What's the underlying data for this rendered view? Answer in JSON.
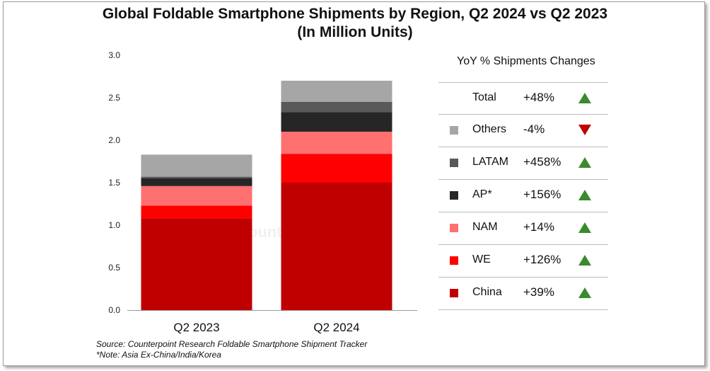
{
  "title_line1": "Global Foldable Smartphone Shipments by Region, Q2 2024 vs Q2 2023",
  "title_line2": "(In Million Units)",
  "source_line1": "Source: Counterpoint Research Foldable Smartphone Shipment Tracker",
  "source_line2": "*Note: Asia Ex-China/India/Korea",
  "watermark": "Counterpoint",
  "legend": {
    "title": "YoY % Shipments Changes",
    "rows": [
      {
        "label": "Total",
        "change": "+48%",
        "direction": "up",
        "color": null
      },
      {
        "label": "Others",
        "change": "-4%",
        "direction": "down",
        "color": "#a6a6a6"
      },
      {
        "label": "LATAM",
        "change": "+458%",
        "direction": "up",
        "color": "#595959"
      },
      {
        "label": "AP*",
        "change": "+156%",
        "direction": "up",
        "color": "#262626"
      },
      {
        "label": "NAM",
        "change": "+14%",
        "direction": "up",
        "color": "#ff7070"
      },
      {
        "label": "WE",
        "change": "+126%",
        "direction": "up",
        "color": "#ff0000"
      },
      {
        "label": "China",
        "change": "+39%",
        "direction": "up",
        "color": "#c00000"
      }
    ],
    "up_color": "#3a8a2e",
    "down_color": "#c00000"
  },
  "chart_data": {
    "type": "bar",
    "stacked": true,
    "title": "Global Foldable Smartphone Shipments by Region, Q2 2024 vs Q2 2023 (In Million Units)",
    "categories": [
      "Q2 2023",
      "Q2 2024"
    ],
    "ylim": [
      0,
      3.0
    ],
    "yticks": [
      "0.0",
      "0.5",
      "1.0",
      "1.5",
      "2.0",
      "2.5",
      "3.0"
    ],
    "grid": false,
    "series": [
      {
        "name": "China",
        "color": "#c00000",
        "values": [
          1.08,
          1.5
        ]
      },
      {
        "name": "WE",
        "color": "#ff0000",
        "values": [
          0.15,
          0.34
        ]
      },
      {
        "name": "NAM",
        "color": "#ff7070",
        "values": [
          0.23,
          0.26
        ]
      },
      {
        "name": "AP*",
        "color": "#262626",
        "values": [
          0.09,
          0.23
        ]
      },
      {
        "name": "LATAM",
        "color": "#595959",
        "values": [
          0.02,
          0.12
        ]
      },
      {
        "name": "Others",
        "color": "#a6a6a6",
        "values": [
          0.26,
          0.25
        ]
      }
    ]
  }
}
